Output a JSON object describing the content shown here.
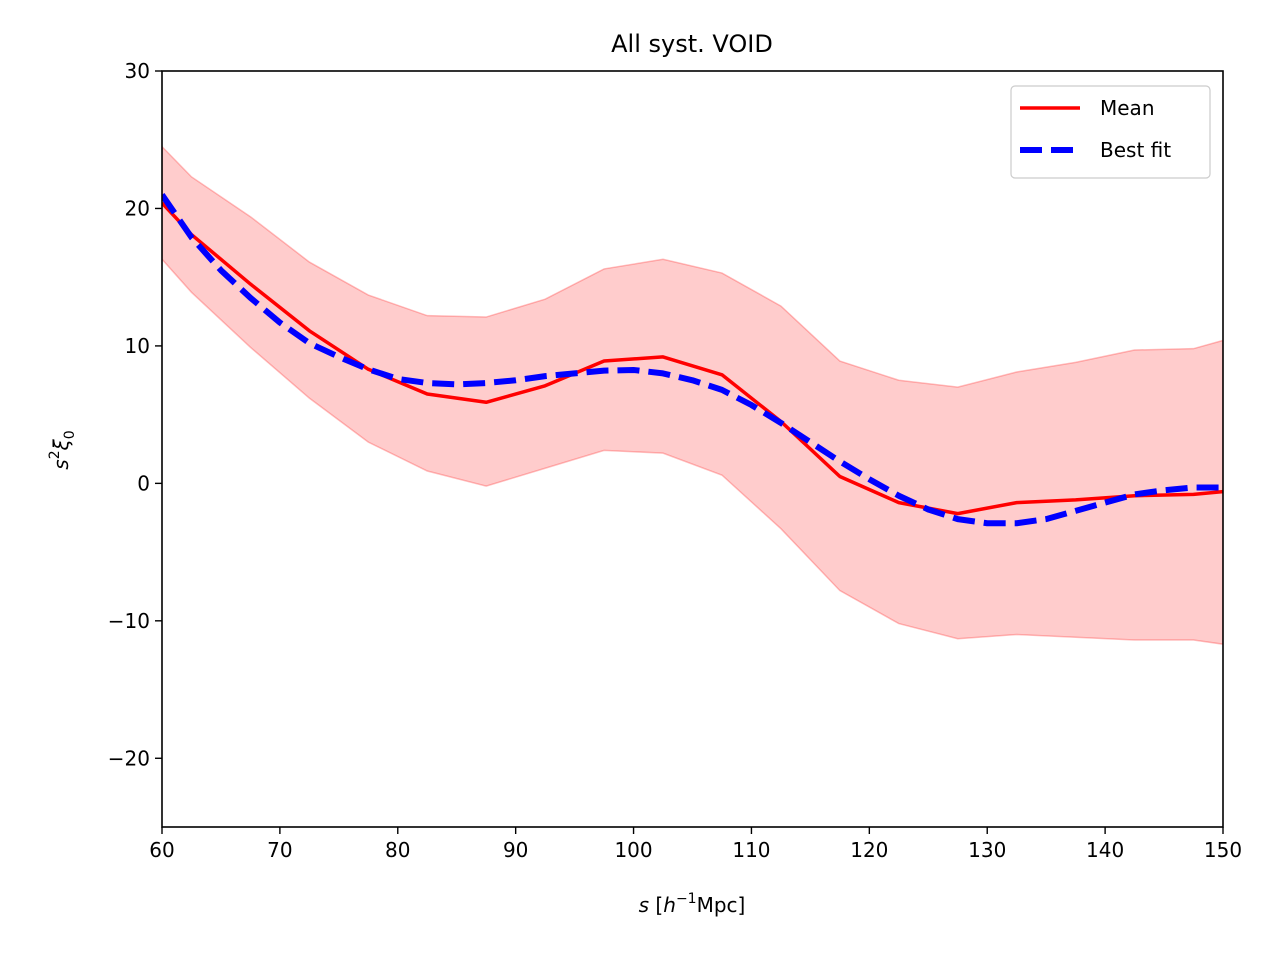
{
  "chart_data": {
    "type": "line",
    "title": "All syst. VOID",
    "xlabel": {
      "italic": "s",
      "open": " [",
      "var": "h",
      "sup": "−1",
      "rest": "Mpc]"
    },
    "ylabel": {
      "base": "s",
      "sup": "2",
      "greek": "ξ",
      "sub": "0"
    },
    "xlim": [
      60,
      150
    ],
    "ylim": [
      -25,
      30
    ],
    "xticks": [
      60,
      70,
      80,
      90,
      100,
      110,
      120,
      130,
      140,
      150
    ],
    "yticks": [
      -20,
      -10,
      0,
      10,
      20,
      30
    ],
    "legend_position": "top-right",
    "band": {
      "color": "#ff0000",
      "opacity": 0.2,
      "x": [
        60,
        62.5,
        67.5,
        72.5,
        77.5,
        82.5,
        87.5,
        92.5,
        97.5,
        102.5,
        107.5,
        112.5,
        117.5,
        122.5,
        127.5,
        132.5,
        137.5,
        142.5,
        147.5,
        150
      ],
      "upper": [
        24.5,
        22.3,
        19.4,
        16.1,
        13.7,
        12.2,
        12.1,
        13.4,
        15.6,
        16.3,
        15.3,
        12.9,
        8.9,
        7.5,
        7.0,
        8.1,
        8.8,
        9.7,
        9.8,
        10.4
      ],
      "lower": [
        16.3,
        13.9,
        9.9,
        6.2,
        3.0,
        0.9,
        -0.2,
        1.1,
        2.4,
        2.2,
        0.6,
        -3.3,
        -7.8,
        -10.2,
        -11.3,
        -11.0,
        -11.2,
        -11.4,
        -11.4,
        -11.7
      ]
    },
    "series": [
      {
        "name": "Mean",
        "color": "#ff0000",
        "style": "solid",
        "x": [
          60,
          62.5,
          67.5,
          72.5,
          77.5,
          82.5,
          87.5,
          92.5,
          97.5,
          102.5,
          107.5,
          112.5,
          117.5,
          122.5,
          127.5,
          132.5,
          137.5,
          142.5,
          147.5,
          150
        ],
        "y": [
          20.4,
          18.1,
          14.5,
          11.1,
          8.3,
          6.5,
          5.9,
          7.1,
          8.9,
          9.2,
          7.9,
          4.5,
          0.5,
          -1.4,
          -2.2,
          -1.4,
          -1.2,
          -0.9,
          -0.8,
          -0.6
        ]
      },
      {
        "name": "Best fit",
        "color": "#0000ff",
        "style": "dashed",
        "x": [
          60,
          62.5,
          65,
          67.5,
          70,
          72.5,
          75,
          77.5,
          80,
          82.5,
          85,
          87.5,
          90,
          92.5,
          95,
          97.5,
          100,
          102.5,
          105,
          107.5,
          110,
          112.5,
          115,
          117.5,
          120,
          122.5,
          125,
          127.5,
          130,
          132.5,
          135,
          137.5,
          140,
          142.5,
          145,
          147.5,
          150
        ],
        "y": [
          21.0,
          17.9,
          15.5,
          13.5,
          11.7,
          10.2,
          9.2,
          8.3,
          7.6,
          7.3,
          7.2,
          7.3,
          7.5,
          7.8,
          8.0,
          8.2,
          8.25,
          8.0,
          7.5,
          6.8,
          5.7,
          4.4,
          3.0,
          1.6,
          0.3,
          -0.9,
          -1.9,
          -2.6,
          -2.9,
          -2.9,
          -2.6,
          -2.0,
          -1.4,
          -0.8,
          -0.5,
          -0.3,
          -0.3
        ]
      }
    ]
  }
}
